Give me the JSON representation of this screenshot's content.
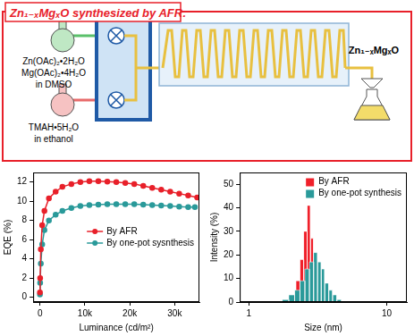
{
  "diagram": {
    "title": "Zn₁₋ₓMgₓO synthesized by AFR:",
    "reagents": [
      {
        "lines": [
          "Zn(OAc)₂•2H₂O",
          "Mg(OAc)₂•4H₂O",
          "in DMSO"
        ]
      },
      {
        "lines": [
          "TMAH•5H₂O",
          "in ethanol"
        ]
      }
    ],
    "product": "Zn₁₋ₓMgₓO"
  },
  "chart_data": [
    {
      "type": "line",
      "x_label": "Luminance (cd/m²)",
      "y_label": "EQE (%)",
      "xlim": [
        -1500,
        35500
      ],
      "ylim": [
        -0.5,
        13
      ],
      "xticks": [
        0,
        {
          "value": 10000,
          "label": "10k"
        },
        {
          "value": 20000,
          "label": "20k"
        },
        {
          "value": 30000,
          "label": "30k"
        }
      ],
      "yticks": [
        0,
        2,
        4,
        6,
        8,
        10,
        12
      ],
      "grid": false,
      "legend": "right",
      "series": [
        {
          "name": "By AFR",
          "color": "#e8202a",
          "marker": "circle",
          "x": [
            0,
            50,
            200,
            500,
            1000,
            2000,
            3500,
            5000,
            7000,
            9000,
            11000,
            13000,
            15000,
            17000,
            19000,
            21000,
            23000,
            25000,
            27000,
            29000,
            31000,
            33000,
            35000
          ],
          "values": [
            0.5,
            2,
            5,
            7.5,
            9,
            10.3,
            11,
            11.5,
            11.8,
            12,
            12.1,
            12.1,
            12.05,
            12,
            11.9,
            11.8,
            11.6,
            11.4,
            11.2,
            11,
            10.8,
            10.6,
            10.4
          ]
        },
        {
          "name": "By one-pot sysnthesis",
          "color": "#2a9a9a",
          "marker": "circle",
          "x": [
            0,
            50,
            200,
            500,
            1000,
            2000,
            3500,
            5000,
            7000,
            9000,
            11000,
            13000,
            15000,
            17000,
            19000,
            21000,
            23000,
            25000,
            27000,
            29000,
            31000,
            33000,
            34500
          ],
          "values": [
            0.3,
            1.5,
            3.5,
            5.5,
            7,
            8,
            8.6,
            9,
            9.3,
            9.5,
            9.6,
            9.65,
            9.7,
            9.7,
            9.7,
            9.7,
            9.65,
            9.6,
            9.55,
            9.5,
            9.45,
            9.4,
            9.4
          ]
        }
      ]
    },
    {
      "type": "histogram",
      "x_label": "Size (nm)",
      "y_label": "Intensity (%)",
      "log": "x",
      "xlim": [
        0.86,
        14
      ],
      "ylim": [
        0,
        55
      ],
      "xticks": [
        1,
        10
      ],
      "yticks": [
        0,
        10,
        20,
        30,
        40,
        50
      ],
      "grid": false,
      "legend": "upper right",
      "series": [
        {
          "name": "By AFR",
          "color": "#f0202a",
          "bins": [
            2.05,
            2.2,
            2.35,
            2.5,
            2.65,
            2.8,
            2.95,
            3.1,
            3.25
          ],
          "values": [
            3,
            9,
            18,
            30,
            41,
            27,
            13,
            4
          ]
        },
        {
          "name": "By one-pot synthesis",
          "color": "#2a9a9a",
          "bins": [
            1.75,
            1.95,
            2.15,
            2.35,
            2.55,
            2.75,
            2.95,
            3.15,
            3.35,
            3.55,
            3.8,
            4.05,
            4.35,
            4.7
          ],
          "values": [
            1,
            3,
            5,
            9,
            14,
            17,
            21,
            17,
            14,
            8,
            5,
            3,
            1
          ]
        }
      ]
    }
  ]
}
